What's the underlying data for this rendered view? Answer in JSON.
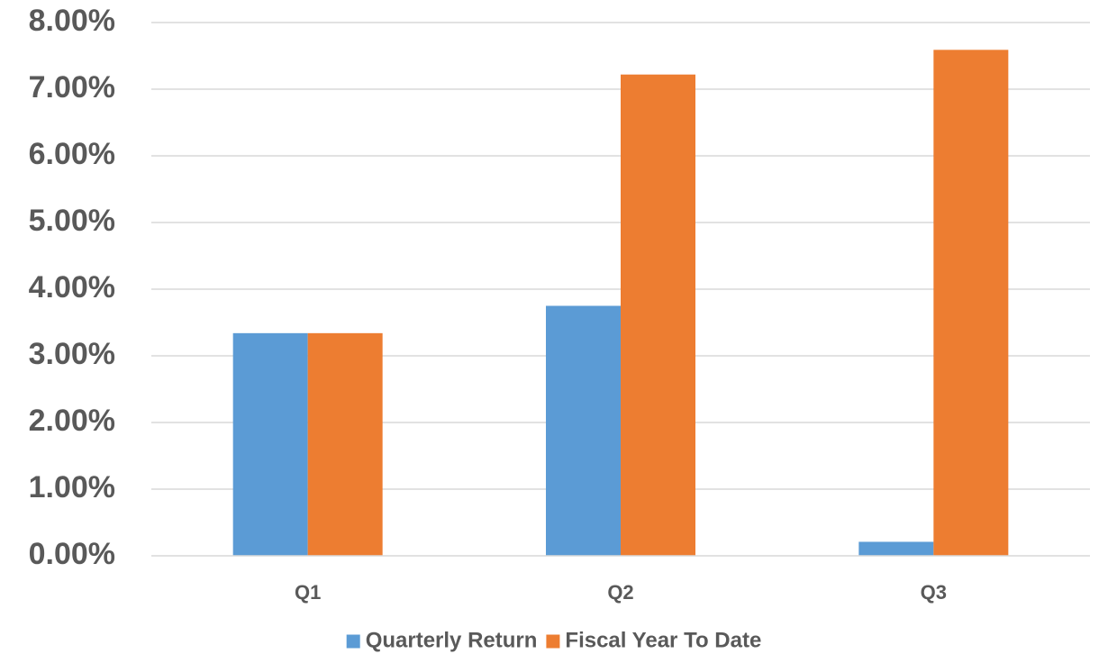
{
  "chart_data": {
    "type": "bar",
    "categories": [
      "Q1",
      "Q2",
      "Q3"
    ],
    "series": [
      {
        "name": "Quarterly Return",
        "values": [
          3.34,
          3.75,
          0.21
        ],
        "color": "#5b9bd5"
      },
      {
        "name": "Fiscal Year To Date",
        "values": [
          3.34,
          7.22,
          7.59
        ],
        "color": "#ed7d31"
      }
    ],
    "ylim": [
      0,
      8
    ],
    "yticks": [
      0,
      1,
      2,
      3,
      4,
      5,
      6,
      7,
      8
    ],
    "ytick_labels": [
      "0.00%",
      "1.00%",
      "2.00%",
      "3.00%",
      "4.00%",
      "5.00%",
      "6.00%",
      "7.00%",
      "8.00%"
    ],
    "title": "",
    "xlabel": "",
    "ylabel": "",
    "grid": true,
    "legend_position": "bottom"
  }
}
